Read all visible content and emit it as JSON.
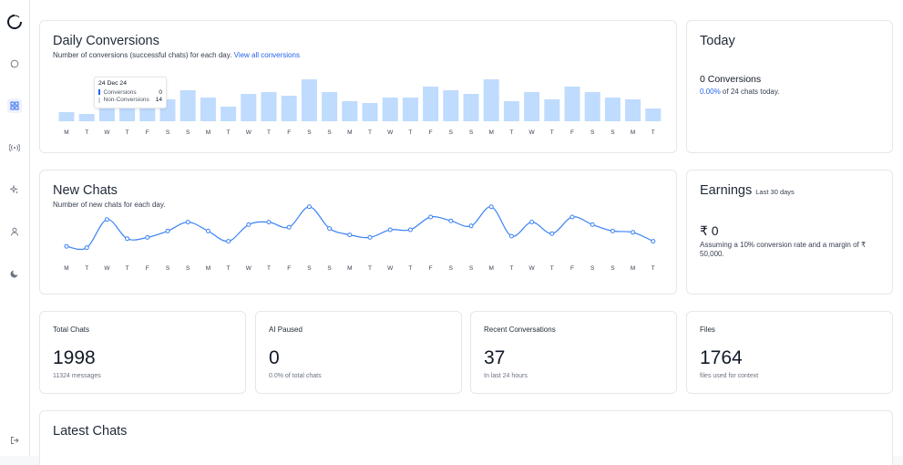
{
  "sidebar": {
    "icons": [
      "logo-icon",
      "chat-icon",
      "dashboard-icon",
      "broadcast-icon",
      "sparkle-icon",
      "user-icon",
      "moon-icon",
      "logout-icon"
    ]
  },
  "daily_conversions": {
    "title": "Daily Conversions",
    "subtitle": "Number of conversions (successful chats) for each day.",
    "link": "View all conversions",
    "tooltip": {
      "date": "24 Dec 24",
      "conversions_label": "Conversions",
      "conversions_value": "0",
      "non_conversions_label": "Non-Conversions",
      "non_conversions_value": "14"
    },
    "chart_data": {
      "type": "bar",
      "categories": [
        "M",
        "T",
        "W",
        "T",
        "F",
        "S",
        "S",
        "M",
        "T",
        "W",
        "T",
        "F",
        "S",
        "S",
        "M",
        "T",
        "W",
        "T",
        "F",
        "S",
        "S",
        "M",
        "T",
        "W",
        "T",
        "F",
        "S",
        "S",
        "M",
        "T"
      ],
      "values": [
        5,
        4,
        12,
        10,
        14,
        12,
        17,
        13,
        8,
        15,
        16,
        14,
        23,
        16,
        11,
        10,
        13,
        13,
        19,
        17,
        15,
        23,
        11,
        16,
        12,
        19,
        16,
        13,
        12,
        7
      ],
      "ylim": [
        0,
        25
      ],
      "color": "#bfdbfe"
    }
  },
  "today": {
    "title": "Today",
    "conversions": "0 Conversions",
    "percent": "0.00%",
    "detail": "of 24 chats today."
  },
  "new_chats": {
    "title": "New Chats",
    "subtitle": "Number of new chats for each day.",
    "chart_data": {
      "type": "line",
      "categories": [
        "M",
        "T",
        "W",
        "T",
        "F",
        "S",
        "S",
        "M",
        "T",
        "W",
        "T",
        "F",
        "S",
        "S",
        "M",
        "T",
        "W",
        "T",
        "F",
        "S",
        "S",
        "M",
        "T",
        "W",
        "T",
        "F",
        "S",
        "S",
        "M",
        "T"
      ],
      "values": [
        12,
        11,
        33,
        18,
        19,
        24,
        31,
        24,
        16,
        29,
        31,
        27,
        43,
        26,
        21,
        19,
        25,
        25,
        35,
        32,
        28,
        43,
        20,
        31,
        22,
        35,
        29,
        24,
        23,
        16
      ],
      "ylim": [
        0,
        50
      ],
      "color": "#3b82f6"
    }
  },
  "earnings": {
    "title": "Earnings",
    "period": "Last 30 days",
    "amount": "₹ 0",
    "note": "Assuming a 10% conversion rate and a margin of ₹ 50,000."
  },
  "stats": [
    {
      "title": "Total Chats",
      "value": "1998",
      "sub": "11324 messages"
    },
    {
      "title": "AI Paused",
      "value": "0",
      "sub": "0.0% of total chats"
    },
    {
      "title": "Recent Conversations",
      "value": "37",
      "sub": "In last 24 hours"
    },
    {
      "title": "Files",
      "value": "1764",
      "sub": "files used for context"
    }
  ],
  "latest_chats": {
    "title": "Latest Chats"
  },
  "colors": {
    "accent": "#2563eb",
    "bar": "#bfdbfe",
    "line": "#3b82f6"
  }
}
